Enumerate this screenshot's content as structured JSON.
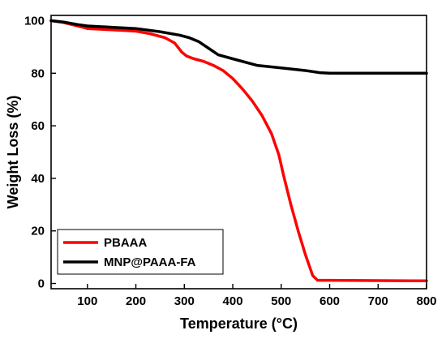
{
  "chart_data": {
    "type": "line",
    "title": "",
    "xlabel": "Temperature (°C)",
    "ylabel": "Weight Loss (%)",
    "xlim": [
      25,
      800
    ],
    "ylim": [
      -2,
      102
    ],
    "x_ticks": [
      100,
      200,
      300,
      400,
      500,
      600,
      700,
      800
    ],
    "y_ticks": [
      0,
      20,
      40,
      60,
      80,
      100
    ],
    "grid": false,
    "legend_position": "bottom-left",
    "series": [
      {
        "name": "PBAAA",
        "color": "#ff0000",
        "x": [
          25,
          50,
          80,
          100,
          150,
          200,
          230,
          260,
          280,
          295,
          305,
          320,
          340,
          360,
          380,
          400,
          420,
          440,
          460,
          480,
          495,
          505,
          520,
          535,
          550,
          565,
          575,
          600,
          700,
          800
        ],
        "y": [
          100,
          99.3,
          98,
          97,
          96.5,
          96,
          95,
          93.5,
          91.5,
          88,
          86.5,
          85.5,
          84.5,
          83,
          81,
          78,
          74,
          69.5,
          64,
          57,
          49,
          41,
          30,
          20,
          11,
          3,
          1.2,
          1.2,
          1.1,
          1.0
        ]
      },
      {
        "name": "MNP@PAAA-FA",
        "color": "#000000",
        "x": [
          25,
          50,
          80,
          100,
          150,
          200,
          250,
          290,
          310,
          330,
          350,
          370,
          400,
          450,
          500,
          550,
          580,
          600,
          700,
          800
        ],
        "y": [
          100,
          99.5,
          98.5,
          98,
          97.5,
          97,
          95.8,
          94.5,
          93.5,
          92,
          89.5,
          87,
          85.5,
          83,
          82,
          81,
          80.2,
          80,
          80,
          80
        ]
      }
    ]
  }
}
